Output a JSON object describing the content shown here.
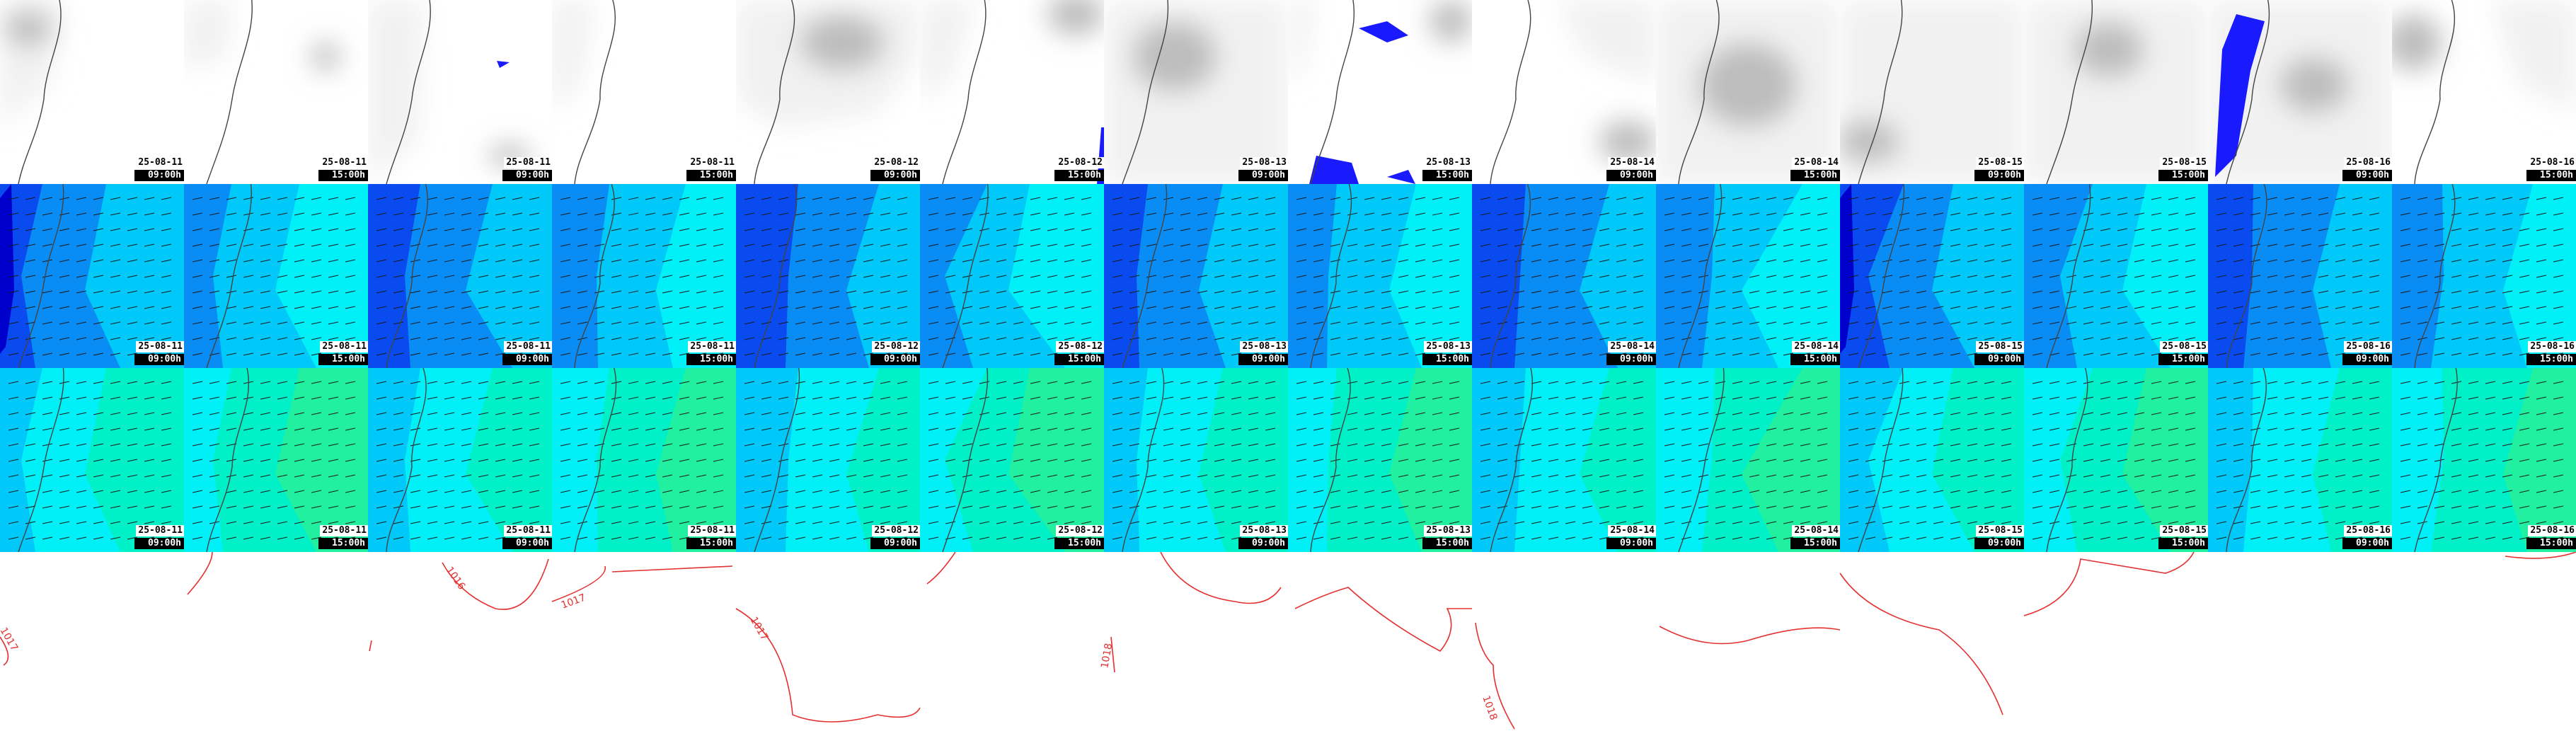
{
  "rows": [
    {
      "name": "cloud",
      "panels": [
        {
          "date": "25-08-11",
          "time": "09:00h"
        },
        {
          "date": "25-08-11",
          "time": "15:00h"
        },
        {
          "date": "25-08-11",
          "time": "09:00h"
        },
        {
          "date": "25-08-11",
          "time": "15:00h"
        },
        {
          "date": "25-08-12",
          "time": "09:00h"
        },
        {
          "date": "25-08-12",
          "time": "15:00h"
        },
        {
          "date": "25-08-13",
          "time": "09:00h"
        },
        {
          "date": "25-08-13",
          "time": "15:00h"
        },
        {
          "date": "25-08-14",
          "time": "09:00h"
        },
        {
          "date": "25-08-14",
          "time": "15:00h"
        },
        {
          "date": "25-08-15",
          "time": "09:00h"
        },
        {
          "date": "25-08-15",
          "time": "15:00h"
        },
        {
          "date": "25-08-16",
          "time": "09:00h"
        },
        {
          "date": "25-08-16",
          "time": "15:00h"
        }
      ]
    },
    {
      "name": "wind-low",
      "panels": [
        {
          "date": "25-08-11",
          "time": "09:00h"
        },
        {
          "date": "25-08-11",
          "time": "15:00h"
        },
        {
          "date": "25-08-11",
          "time": "09:00h"
        },
        {
          "date": "25-08-11",
          "time": "15:00h"
        },
        {
          "date": "25-08-12",
          "time": "09:00h"
        },
        {
          "date": "25-08-12",
          "time": "15:00h"
        },
        {
          "date": "25-08-13",
          "time": "09:00h"
        },
        {
          "date": "25-08-13",
          "time": "15:00h"
        },
        {
          "date": "25-08-14",
          "time": "09:00h"
        },
        {
          "date": "25-08-14",
          "time": "15:00h"
        },
        {
          "date": "25-08-15",
          "time": "09:00h"
        },
        {
          "date": "25-08-15",
          "time": "15:00h"
        },
        {
          "date": "25-08-16",
          "time": "09:00h"
        },
        {
          "date": "25-08-16",
          "time": "15:00h"
        }
      ]
    },
    {
      "name": "wind-high",
      "panels": [
        {
          "date": "25-08-11",
          "time": "09:00h"
        },
        {
          "date": "25-08-11",
          "time": "15:00h"
        },
        {
          "date": "25-08-11",
          "time": "09:00h"
        },
        {
          "date": "25-08-11",
          "time": "15:00h"
        },
        {
          "date": "25-08-12",
          "time": "09:00h"
        },
        {
          "date": "25-08-12",
          "time": "15:00h"
        },
        {
          "date": "25-08-13",
          "time": "09:00h"
        },
        {
          "date": "25-08-13",
          "time": "15:00h"
        },
        {
          "date": "25-08-14",
          "time": "09:00h"
        },
        {
          "date": "25-08-14",
          "time": "15:00h"
        },
        {
          "date": "25-08-15",
          "time": "09:00h"
        },
        {
          "date": "25-08-15",
          "time": "15:00h"
        },
        {
          "date": "25-08-16",
          "time": "09:00h"
        },
        {
          "date": "25-08-16",
          "time": "15:00h"
        }
      ]
    }
  ],
  "pressure_labels": [
    "1017",
    "1016",
    "1017",
    "1017",
    "1018",
    "1018"
  ],
  "colors": {
    "cloud_dark": "#bdbdbd",
    "cloud_light": "#f1f1f1",
    "precip": "#1a1aff",
    "wind_navy": "#0000cc",
    "wind_blue": "#0a4bf0",
    "wind_mid": "#0a8cf5",
    "wind_sky": "#00c8f8",
    "wind_cyan": "#00f0f8",
    "wind_teal": "#00f0c8",
    "wind_green": "#20f0a0",
    "isobar": "#e53030",
    "coast": "#444444"
  }
}
